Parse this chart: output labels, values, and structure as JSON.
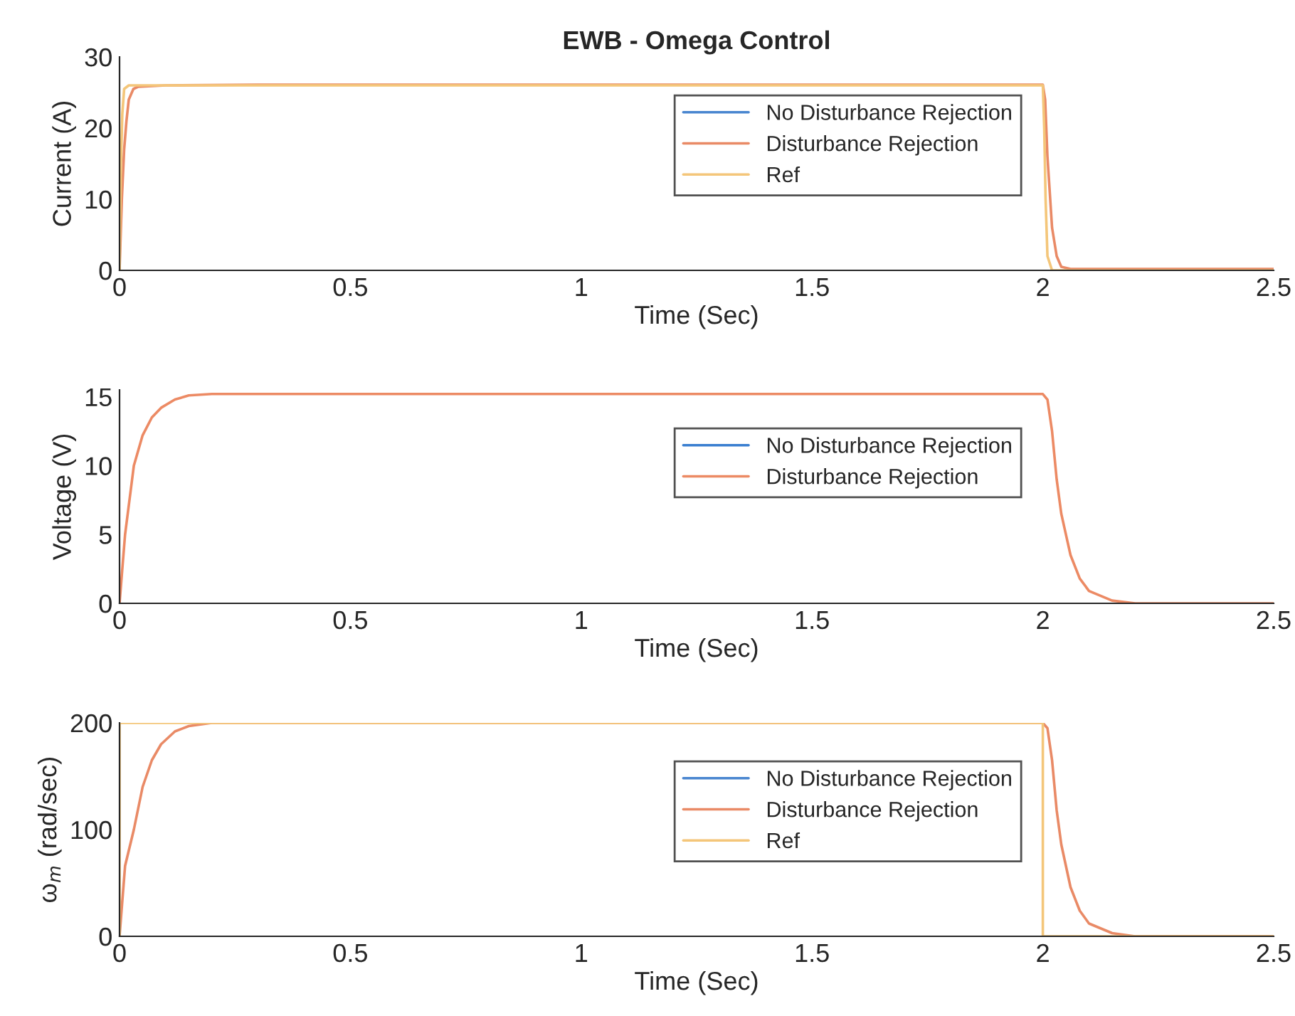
{
  "chart_data": [
    {
      "type": "line",
      "title": "EWB - Omega Control",
      "xlabel": "Time (Sec)",
      "ylabel": "Current (A)",
      "xlim": [
        0,
        2.5
      ],
      "xticks": [
        0,
        0.5,
        1,
        1.5,
        2,
        2.5
      ],
      "ylim": [
        0,
        30
      ],
      "yticks": [
        0,
        10,
        20,
        30
      ],
      "grid": false,
      "legend": "top right",
      "line_style": "solid",
      "marker": "none",
      "series": [
        {
          "name": "No Disturbance Rejection",
          "color": "#4a86d0"
        },
        {
          "name": "Disturbance Rejection",
          "color": "#e98a66",
          "x": [
            0,
            0.005,
            0.01,
            0.015,
            0.02,
            0.03,
            0.04,
            0.1,
            0.3,
            1,
            2,
            2.005,
            2.01,
            2.02,
            2.03,
            2.04,
            2.06,
            2.5
          ],
          "values": [
            0,
            10,
            17,
            21,
            24,
            25.5,
            25.8,
            26,
            26.1,
            26.1,
            26.1,
            24,
            16,
            6,
            2,
            0.5,
            0.2,
            0.2
          ]
        },
        {
          "name": "Ref",
          "color": "#f4c67a",
          "x": [
            0,
            0.003,
            0.006,
            0.01,
            0.02,
            0.1,
            2,
            2.003,
            2.006,
            2.01,
            2.02,
            2.5
          ],
          "values": [
            0,
            15,
            22,
            25.5,
            26,
            26,
            26,
            20,
            10,
            2,
            0,
            0
          ]
        }
      ]
    },
    {
      "type": "line",
      "xlabel": "Time (Sec)",
      "ylabel": "Voltage (V)",
      "xlim": [
        0,
        2.5
      ],
      "xticks": [
        0,
        0.5,
        1,
        1.5,
        2,
        2.5
      ],
      "ylim": [
        0,
        15.5
      ],
      "yticks": [
        0,
        5,
        10,
        15
      ],
      "grid": false,
      "legend": "top right",
      "line_style": "solid",
      "marker": "none",
      "series": [
        {
          "name": "No Disturbance Rejection",
          "color": "#3a7fd0"
        },
        {
          "name": "Disturbance Rejection",
          "color": "#ec8a64",
          "x": [
            0,
            0.012,
            0.031,
            0.05,
            0.07,
            0.09,
            0.12,
            0.15,
            0.2,
            0.3,
            2,
            2.01,
            2.02,
            2.03,
            2.04,
            2.06,
            2.08,
            2.1,
            2.15,
            2.2,
            2.5
          ],
          "values": [
            0,
            5,
            10,
            12.2,
            13.5,
            14.2,
            14.8,
            15.1,
            15.2,
            15.2,
            15.2,
            14.8,
            12.5,
            9,
            6.5,
            3.5,
            1.8,
            0.9,
            0.2,
            0,
            0
          ]
        }
      ]
    },
    {
      "type": "line",
      "xlabel": "Time (Sec)",
      "ylabel": "ω$_{m}$ (rad/sec)",
      "xlim": [
        0,
        2.5
      ],
      "xticks": [
        0,
        0.5,
        1,
        1.5,
        2,
        2.5
      ],
      "ylim": [
        0,
        200
      ],
      "yticks": [
        0,
        100,
        200
      ],
      "grid": false,
      "legend": "top right",
      "line_style": "solid",
      "marker": "none",
      "series": [
        {
          "name": "No Disturbance Rejection",
          "color": "#4a86d0"
        },
        {
          "name": "Disturbance Rejection",
          "color": "#e98a66",
          "x": [
            0,
            0.012,
            0.031,
            0.05,
            0.07,
            0.09,
            0.12,
            0.15,
            0.2,
            0.3,
            2,
            2.01,
            2.02,
            2.03,
            2.04,
            2.06,
            2.08,
            2.1,
            2.15,
            2.2,
            2.5
          ],
          "values": [
            0,
            66,
            100,
            140,
            165,
            180,
            192,
            197,
            200,
            200,
            200,
            195,
            165,
            118,
            86,
            46,
            24,
            12,
            3,
            0,
            0
          ]
        },
        {
          "name": "Ref",
          "color": "#f4c67a",
          "x": [
            0,
            0,
            2,
            2,
            2.5
          ],
          "values": [
            0,
            200,
            200,
            0,
            0
          ]
        }
      ]
    }
  ]
}
